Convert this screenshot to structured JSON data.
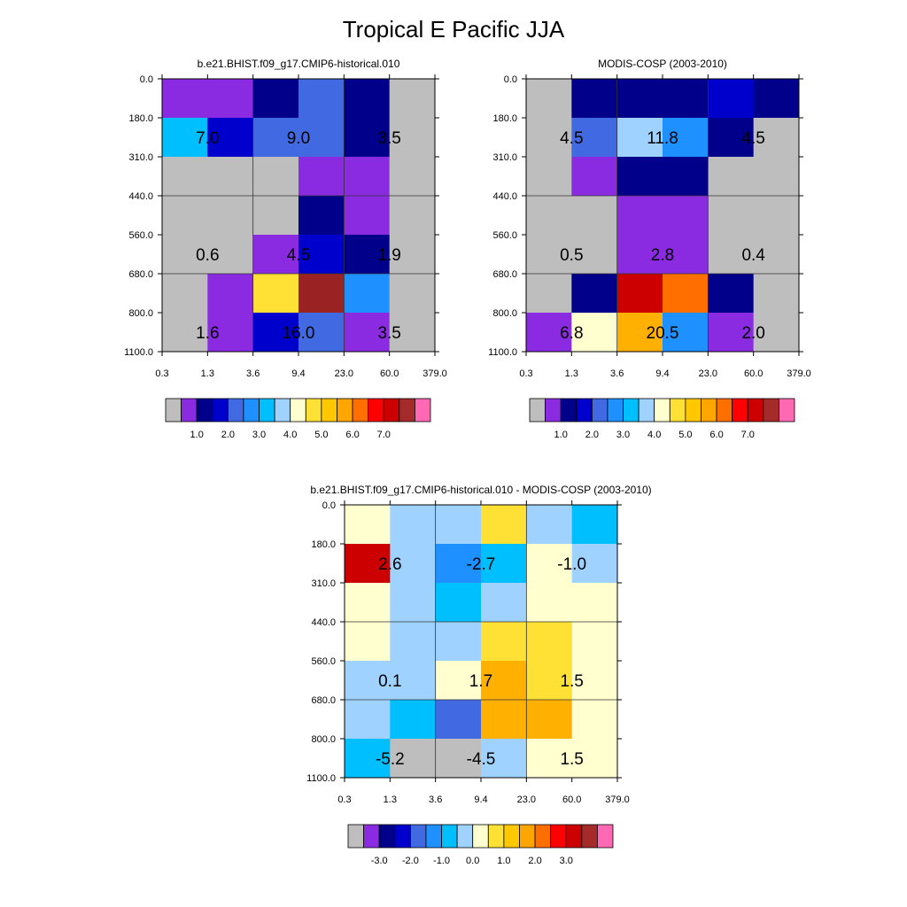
{
  "figure_title": "Tropical E Pacific JJA",
  "colorbars": {
    "abs": {
      "colors": [
        "#bebebe",
        "#8a2be2",
        "#00008b",
        "#0000cd",
        "#4169e1",
        "#1e90ff",
        "#00bfff",
        "#a0d2ff",
        "#ffffd0",
        "#ffe135",
        "#ffc800",
        "#ffa500",
        "#ff6f00",
        "#ff0000",
        "#cc0000",
        "#a52a2a",
        "#ff69b4"
      ],
      "tick_labels": [
        "1.0",
        "2.0",
        "3.0",
        "4.0",
        "5.0",
        "6.0",
        "7.0"
      ]
    },
    "diff": {
      "colors": [
        "#bebebe",
        "#8a2be2",
        "#00008b",
        "#0000cd",
        "#4169e1",
        "#1e90ff",
        "#00bfff",
        "#a0d2ff",
        "#ffffd0",
        "#ffe135",
        "#ffc800",
        "#ffa500",
        "#ff6f00",
        "#ff0000",
        "#cc0000",
        "#a52a2a",
        "#ff69b4"
      ],
      "tick_labels": [
        "-3.0",
        "-2.0",
        "-1.0",
        "0.0",
        "1.0",
        "2.0",
        "3.0"
      ]
    }
  },
  "chart_data": [
    {
      "type": "heatmap",
      "title": "b.e21.BHIST.f09_g17.CMIP6-historical.010",
      "x_tick_labels": [
        "0.3",
        "1.3",
        "3.6",
        "9.4",
        "23.0",
        "60.0",
        "379.0"
      ],
      "y_tick_labels": [
        "0.0",
        "180.0",
        "310.0",
        "440.0",
        "560.0",
        "680.0",
        "800.0",
        "1100.0"
      ],
      "colorbar": "abs",
      "cell_colors": [
        [
          "#8a2be2",
          "#8a2be2",
          "#00008b",
          "#4169e1",
          "#00008b",
          "#bebebe"
        ],
        [
          "#00bfff",
          "#0000cd",
          "#4169e1",
          "#4169e1",
          "#00008b",
          "#bebebe"
        ],
        [
          "#bebebe",
          "#bebebe",
          "#bebebe",
          "#8a2be2",
          "#8a2be2",
          "#bebebe"
        ],
        [
          "#bebebe",
          "#bebebe",
          "#bebebe",
          "#00008b",
          "#8a2be2",
          "#bebebe"
        ],
        [
          "#bebebe",
          "#bebebe",
          "#8a2be2",
          "#0000cd",
          "#00008b",
          "#bebebe"
        ],
        [
          "#bebebe",
          "#8a2be2",
          "#ffe135",
          "#9b2222",
          "#1e90ff",
          "#bebebe"
        ],
        [
          "#bebebe",
          "#8a2be2",
          "#0000cd",
          "#4169e1",
          "#8a2be2",
          "#bebebe"
        ]
      ],
      "group_labels": [
        "7.0",
        "9.0",
        "3.5",
        "0.6",
        "4.5",
        "1.9",
        "1.6",
        "16.0",
        "3.5"
      ]
    },
    {
      "type": "heatmap",
      "title": "MODIS-COSP (2003-2010)",
      "x_tick_labels": [
        "0.3",
        "1.3",
        "3.6",
        "9.4",
        "23.0",
        "60.0",
        "379.0"
      ],
      "y_tick_labels": [
        "0.0",
        "180.0",
        "310.0",
        "440.0",
        "560.0",
        "680.0",
        "800.0",
        "1100.0"
      ],
      "colorbar": "abs",
      "cell_colors": [
        [
          "#bebebe",
          "#00008b",
          "#00008b",
          "#00008b",
          "#0000cd",
          "#00008b"
        ],
        [
          "#bebebe",
          "#4169e1",
          "#a0d2ff",
          "#1e90ff",
          "#00008b",
          "#bebebe"
        ],
        [
          "#bebebe",
          "#8a2be2",
          "#00008b",
          "#00008b",
          "#bebebe",
          "#bebebe"
        ],
        [
          "#bebebe",
          "#bebebe",
          "#8a2be2",
          "#8a2be2",
          "#bebebe",
          "#bebebe"
        ],
        [
          "#bebebe",
          "#bebebe",
          "#8a2be2",
          "#8a2be2",
          "#bebebe",
          "#bebebe"
        ],
        [
          "#bebebe",
          "#00008b",
          "#cc0000",
          "#ff6f00",
          "#00008b",
          "#bebebe"
        ],
        [
          "#8a2be2",
          "#ffffd0",
          "#ffb000",
          "#1e90ff",
          "#8a2be2",
          "#bebebe"
        ]
      ],
      "group_labels": [
        "4.5",
        "11.8",
        "4.5",
        "0.5",
        "2.8",
        "0.4",
        "6.8",
        "20.5",
        "2.0"
      ]
    },
    {
      "type": "heatmap",
      "title": "b.e21.BHIST.f09_g17.CMIP6-historical.010 - MODIS-COSP (2003-2010)",
      "x_tick_labels": [
        "0.3",
        "1.3",
        "3.6",
        "9.4",
        "23.0",
        "60.0",
        "379.0"
      ],
      "y_tick_labels": [
        "0.0",
        "180.0",
        "310.0",
        "440.0",
        "560.0",
        "680.0",
        "800.0",
        "1100.0"
      ],
      "colorbar": "diff",
      "cell_colors": [
        [
          "#ffffd0",
          "#a0d2ff",
          "#a0d2ff",
          "#ffe135",
          "#a0d2ff",
          "#00bfff"
        ],
        [
          "#cc0000",
          "#a0d2ff",
          "#1e90ff",
          "#00bfff",
          "#ffffd0",
          "#a0d2ff"
        ],
        [
          "#ffffd0",
          "#a0d2ff",
          "#00bfff",
          "#a0d2ff",
          "#ffffd0",
          "#ffffd0"
        ],
        [
          "#ffffd0",
          "#a0d2ff",
          "#a0d2ff",
          "#ffe135",
          "#ffe135",
          "#ffffd0"
        ],
        [
          "#a0d2ff",
          "#a0d2ff",
          "#ffffd0",
          "#ffb000",
          "#ffe135",
          "#ffffd0"
        ],
        [
          "#a0d2ff",
          "#00bfff",
          "#4169e1",
          "#ffb000",
          "#ffb000",
          "#ffffd0"
        ],
        [
          "#00bfff",
          "#bebebe",
          "#bebebe",
          "#a0d2ff",
          "#ffffd0",
          "#ffffd0"
        ]
      ],
      "group_labels": [
        "2.6",
        "-2.7",
        "-1.0",
        "0.1",
        "1.7",
        "1.5",
        "-5.2",
        "-4.5",
        "1.5"
      ]
    }
  ]
}
